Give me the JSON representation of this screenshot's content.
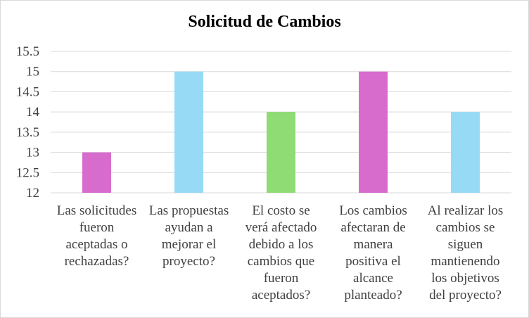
{
  "chart_data": {
    "type": "bar",
    "title": "Solicitud de Cambios",
    "xlabel": "",
    "ylabel": "",
    "ylim": [
      12,
      15.5
    ],
    "yticks": [
      "12",
      "12.5",
      "13",
      "13.5",
      "14",
      "14.5",
      "15",
      "15.5"
    ],
    "grid": true,
    "legend": "none",
    "categories": [
      "Las solicitudes fueron aceptadas o rechazadas?",
      "Las propuestas ayudan a mejorar el proyecto?",
      "El costo se verá afectado debido a los cambios que fueron aceptados?",
      "Los cambios afectaran de manera positiva el alcance planteado?",
      "Al realizar los cambios se siguen mantienendo los objetivos del proyecto?"
    ],
    "category_lines": [
      [
        "Las solicitudes",
        "fueron",
        "aceptadas o",
        "rechazadas?"
      ],
      [
        "Las propuestas",
        "ayudan a",
        "mejorar el",
        "proyecto?"
      ],
      [
        "El costo se",
        "verá afectado",
        "debido a los",
        "cambios que",
        "fueron",
        "aceptados?"
      ],
      [
        "Los cambios",
        "afectaran de",
        "manera",
        "positiva el",
        "alcance",
        "planteado?"
      ],
      [
        "Al realizar los",
        "cambios se",
        "siguen",
        "mantienendo",
        "los objetivos",
        "del proyecto?"
      ]
    ],
    "values": [
      13,
      15,
      14,
      15,
      14
    ],
    "colors": [
      "#d76ccd",
      "#97daf6",
      "#8fdb74",
      "#d76ccd",
      "#97daf6"
    ],
    "gridline_color": "#d9d9d9"
  }
}
